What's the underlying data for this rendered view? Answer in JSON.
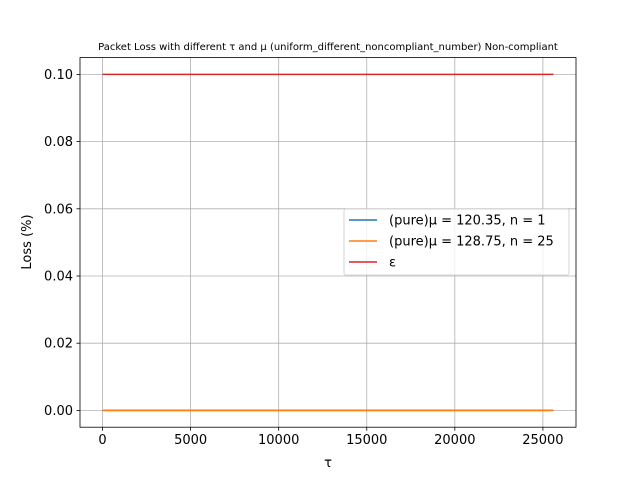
{
  "chart_data": {
    "type": "line",
    "title": "Packet Loss with different τ and μ (uniform_different_noncompliant_number) Non-compliant",
    "xlabel": "τ",
    "ylabel": "Loss (%)",
    "xlim": [
      -1280,
      26880
    ],
    "ylim": [
      -0.005,
      0.105
    ],
    "xticks": [
      0,
      5000,
      10000,
      15000,
      20000,
      25000
    ],
    "xtick_labels": [
      "0",
      "5000",
      "10000",
      "15000",
      "20000",
      "25000"
    ],
    "yticks": [
      0.0,
      0.02,
      0.04,
      0.06,
      0.08,
      0.1
    ],
    "ytick_labels": [
      "0.00",
      "0.02",
      "0.04",
      "0.06",
      "0.08",
      "0.10"
    ],
    "grid": true,
    "legend_position": "center-right",
    "series": [
      {
        "name": "(pure)μ = 120.35, n =  1",
        "color": "#1f77b4",
        "x": [
          0,
          25600
        ],
        "y": [
          0.0,
          0.0
        ]
      },
      {
        "name": "(pure)μ = 128.75, n = 25",
        "color": "#ff7f0e",
        "x": [
          0,
          25600
        ],
        "y": [
          0.0,
          0.0
        ]
      },
      {
        "name": "ε",
        "color": "#d62728",
        "x": [
          0,
          25600
        ],
        "y": [
          0.1,
          0.1
        ]
      }
    ]
  }
}
